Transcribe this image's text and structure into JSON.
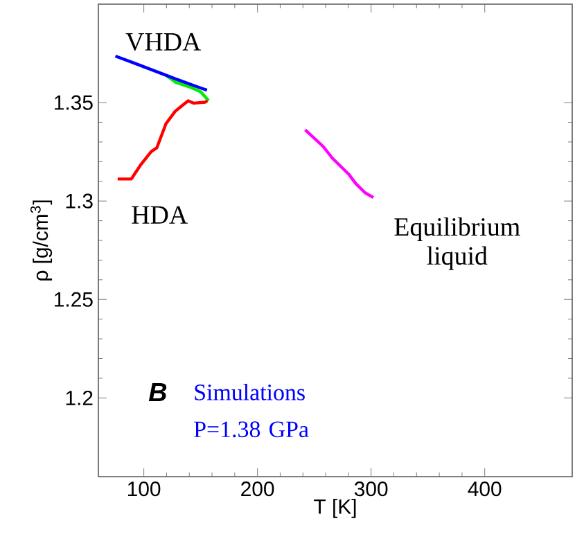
{
  "chart_data": {
    "type": "line",
    "xlabel": "T [K]",
    "ylabel": "ρ [g/cm$^{3}$]",
    "xlim": [
      60,
      477
    ],
    "ylim": [
      1.16,
      1.4
    ],
    "xticks": [
      100,
      200,
      300,
      400
    ],
    "yticks": [
      1.2,
      1.25,
      1.3,
      1.35
    ],
    "series": [
      {
        "color": "#00ee00",
        "x": [
          120,
          128,
          140,
          150,
          157
        ],
        "values": [
          1.3637,
          1.3603,
          1.358,
          1.3555,
          1.351
        ]
      },
      {
        "color": "#0000ff",
        "x": [
          75,
          90,
          100,
          110,
          120,
          130,
          140,
          150,
          155.6
        ],
        "values": [
          1.3736,
          1.3704,
          1.3682,
          1.366,
          1.3638,
          1.3616,
          1.3595,
          1.3574,
          1.3563
        ]
      },
      {
        "color": "#ff0000",
        "x": [
          77,
          89,
          97,
          106.6,
          111.4,
          119.5,
          127.6,
          139,
          144,
          154,
          156
        ],
        "values": [
          1.3112,
          1.3112,
          1.3182,
          1.3252,
          1.327,
          1.3393,
          1.3456,
          1.3509,
          1.3497,
          1.3502,
          1.351
        ]
      },
      {
        "color": "#ff00ff",
        "x": [
          242,
          258,
          266,
          280.5,
          286.6,
          294.7,
          302
        ],
        "values": [
          1.3362,
          1.3276,
          1.3217,
          1.3135,
          1.3088,
          1.3042,
          1.3018
        ]
      }
    ],
    "annotations": [
      "VHDA",
      "HDA",
      "Equilibrium liquid",
      "B",
      "Simulations",
      "P=1.38 GPa"
    ]
  }
}
